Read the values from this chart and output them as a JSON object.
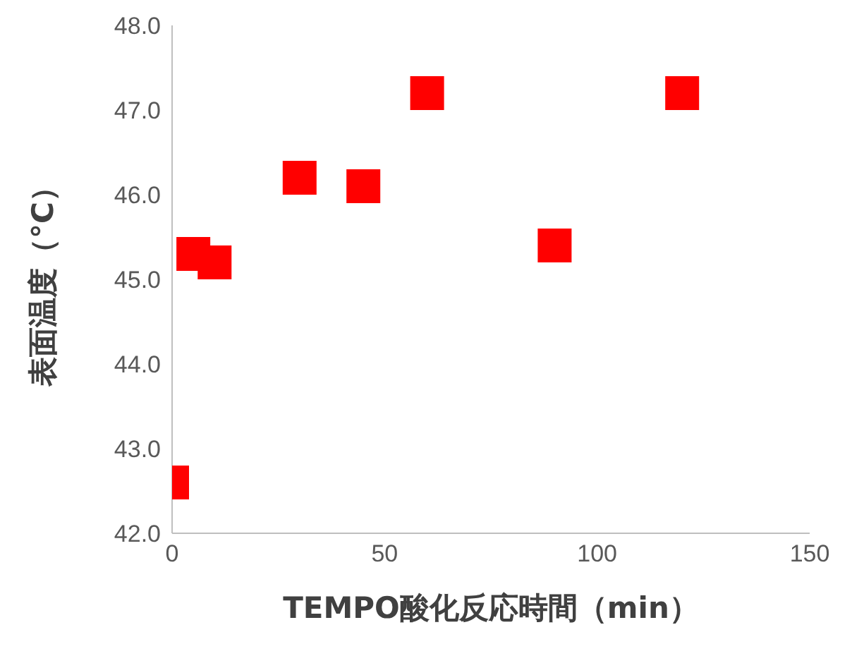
{
  "chart_data": {
    "type": "scatter",
    "xlabel": "TEMPO酸化反応時間（min）",
    "ylabel": "表面温度（°C）",
    "x": [
      0,
      5,
      10,
      30,
      45,
      60,
      90,
      120
    ],
    "series": [
      {
        "color": "#ff0000",
        "values": [
          42.6,
          45.3,
          45.2,
          46.2,
          46.1,
          47.2,
          45.4,
          47.2
        ]
      }
    ],
    "xlim": [
      0,
      150
    ],
    "xticks": [
      0,
      50,
      100,
      150
    ],
    "ylim": [
      42,
      48
    ],
    "yticks": [
      {
        "value": 42,
        "label": "42.0"
      },
      {
        "value": 43,
        "label": "43.0"
      },
      {
        "value": 44,
        "label": "44.0"
      },
      {
        "value": 45,
        "label": "45.0"
      },
      {
        "value": 46,
        "label": "46.0"
      },
      {
        "value": 47,
        "label": "47.0"
      },
      {
        "value": 48,
        "label": "48.0"
      }
    ],
    "marker": "square",
    "grid": false,
    "legend": false
  }
}
